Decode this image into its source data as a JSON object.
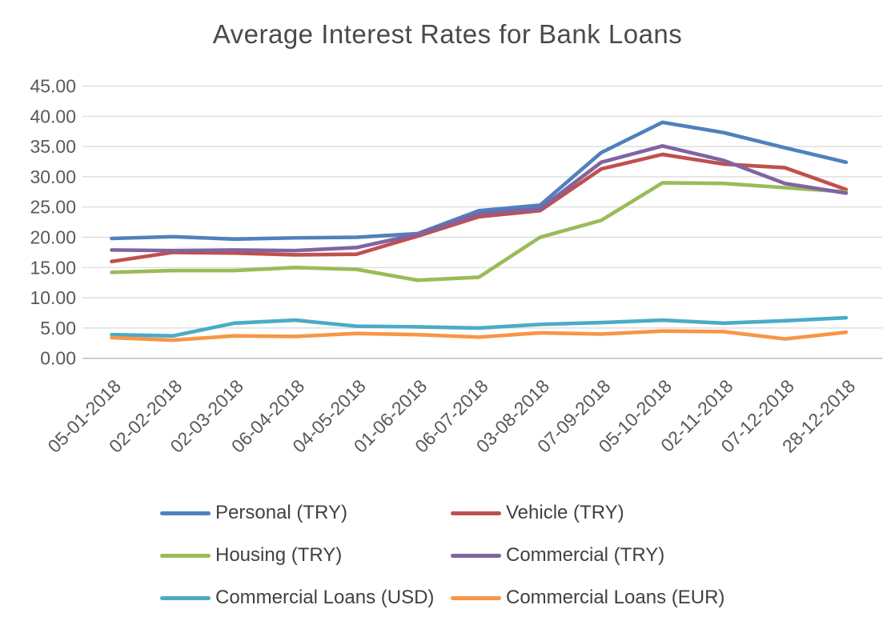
{
  "title": "Average Interest Rates for Bank Loans",
  "chart_data": {
    "type": "line",
    "title": "Average Interest Rates for Bank Loans",
    "xlabel": "",
    "ylabel": "",
    "ylim": [
      0,
      45
    ],
    "y_tick_step": 5,
    "y_ticks": [
      "45.00",
      "40.00",
      "35.00",
      "30.00",
      "25.00",
      "20.00",
      "15.00",
      "10.00",
      "5.00",
      "0.00"
    ],
    "grid": "horizontal",
    "legend_position": "bottom",
    "categories": [
      "05-01-2018",
      "02-02-2018",
      "02-03-2018",
      "06-04-2018",
      "04-05-2018",
      "01-06-2018",
      "06-07-2018",
      "03-08-2018",
      "07-09-2018",
      "05-10-2018",
      "02-11-2018",
      "07-12-2018",
      "28-12-2018"
    ],
    "series": [
      {
        "name": "Personal (TRY)",
        "color": "#4F81BD",
        "values": [
          19.8,
          20.1,
          19.7,
          19.9,
          20.0,
          20.6,
          24.4,
          25.3,
          34.0,
          39.0,
          37.3,
          34.8,
          32.4
        ]
      },
      {
        "name": "Vehicle (TRY)",
        "color": "#C0504D",
        "values": [
          16.0,
          17.5,
          17.4,
          17.1,
          17.2,
          20.2,
          23.4,
          24.4,
          31.3,
          33.7,
          32.1,
          31.5,
          27.9
        ]
      },
      {
        "name": "Housing (TRY)",
        "color": "#9BBB59",
        "values": [
          14.2,
          14.5,
          14.5,
          15.0,
          14.7,
          12.9,
          13.4,
          20.0,
          22.8,
          29.0,
          28.9,
          28.2,
          27.5
        ]
      },
      {
        "name": "Commercial (TRY)",
        "color": "#8064A2",
        "values": [
          17.9,
          17.8,
          17.9,
          17.8,
          18.3,
          20.5,
          23.9,
          24.7,
          32.4,
          35.1,
          32.7,
          28.9,
          27.3
        ]
      },
      {
        "name": "Commercial Loans (USD)",
        "color": "#4BACC6",
        "values": [
          3.9,
          3.7,
          5.8,
          6.3,
          5.3,
          5.2,
          5.0,
          5.6,
          5.9,
          6.3,
          5.8,
          6.2,
          6.7
        ]
      },
      {
        "name": "Commercial Loans (EUR)",
        "color": "#F79646",
        "values": [
          3.4,
          3.0,
          3.7,
          3.6,
          4.1,
          3.9,
          3.5,
          4.2,
          4.0,
          4.5,
          4.4,
          3.2,
          4.3
        ]
      }
    ],
    "colors": {
      "axis_text": "#595959",
      "title_text": "#4a4a4a",
      "legend_text": "#414141",
      "gridline": "#D9D9D9",
      "axis_line": "#BFBFBF",
      "background": "#FFFFFF"
    }
  }
}
